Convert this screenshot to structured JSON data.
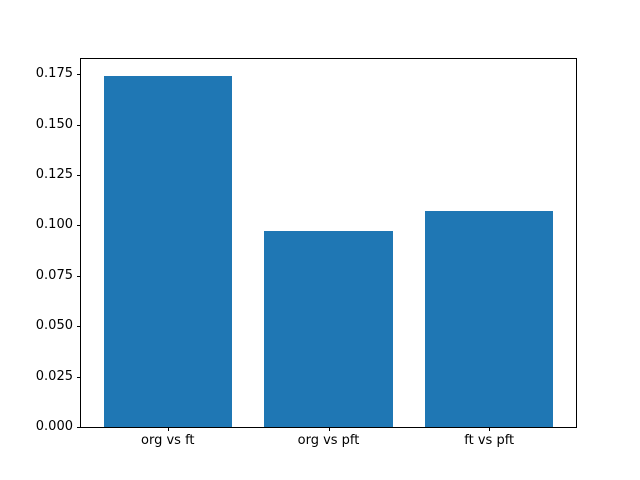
{
  "chart_data": {
    "type": "bar",
    "categories": [
      "org vs ft",
      "org vs pft",
      "ft vs pft"
    ],
    "values": [
      0.174,
      0.097,
      0.107
    ],
    "title": "",
    "xlabel": "",
    "ylabel": "",
    "ylim": [
      0,
      0.1825
    ],
    "yticks": [
      0.0,
      0.025,
      0.05,
      0.075,
      0.1,
      0.125,
      0.15,
      0.175
    ],
    "ytick_labels": [
      "0.000",
      "0.025",
      "0.050",
      "0.075",
      "0.100",
      "0.125",
      "0.150",
      "0.175"
    ],
    "bar_color": "#1f77b4",
    "bar_width_fraction": 0.8,
    "grid": false,
    "legend": null,
    "background": "#ffffff",
    "axis_color": "#000000"
  }
}
